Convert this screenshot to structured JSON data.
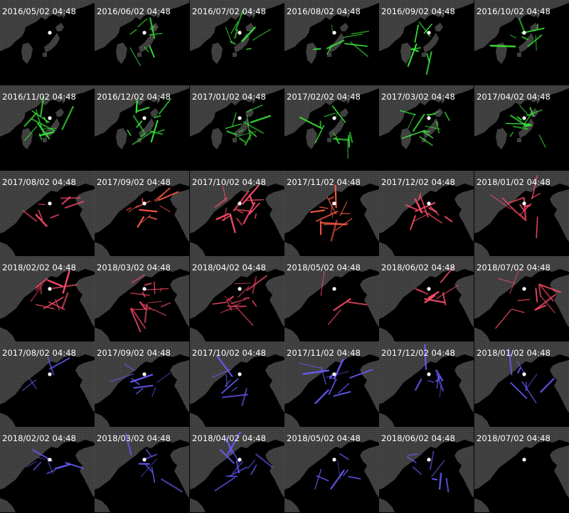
{
  "panels": [
    {
      "label": "2016/05/02 04:48",
      "map": "japan",
      "color": "#39e639",
      "density": 0
    },
    {
      "label": "2016/06/02 04:48",
      "map": "japan",
      "color": "#39e639",
      "density": 2
    },
    {
      "label": "2016/07/02 04:48",
      "map": "japan",
      "color": "#39e639",
      "density": 2
    },
    {
      "label": "2016/08/02 04:48",
      "map": "japan",
      "color": "#39e639",
      "density": 2
    },
    {
      "label": "2016/09/02 04:48",
      "map": "japan",
      "color": "#39e639",
      "density": 2
    },
    {
      "label": "2016/10/02 04:48",
      "map": "japan",
      "color": "#39e639",
      "density": 2
    },
    {
      "label": "2016/11/02 04:48",
      "map": "japan",
      "color": "#39e639",
      "density": 3
    },
    {
      "label": "2016/12/02 04:48",
      "map": "japan",
      "color": "#39e639",
      "density": 3
    },
    {
      "label": "2017/01/02 04:48",
      "map": "japan",
      "color": "#39e639",
      "density": 3
    },
    {
      "label": "2017/02/02 04:48",
      "map": "japan",
      "color": "#39e639",
      "density": 3
    },
    {
      "label": "2017/03/02 04:48",
      "map": "japan",
      "color": "#39e639",
      "density": 3
    },
    {
      "label": "2017/04/02 04:48",
      "map": "japan",
      "color": "#39e639",
      "density": 3
    },
    {
      "label": "2017/08/02 04:48",
      "map": "bay",
      "color": "#ff4d6a",
      "density": 2
    },
    {
      "label": "2017/09/02 04:48",
      "map": "bay",
      "color": "#ff5a48",
      "density": 3
    },
    {
      "label": "2017/10/02 04:48",
      "map": "bay",
      "color": "#ff4d6a",
      "density": 4
    },
    {
      "label": "2017/11/02 04:48",
      "map": "bay",
      "color": "#ff5a48",
      "density": 4
    },
    {
      "label": "2017/12/02 04:48",
      "map": "bay",
      "color": "#ff4d6a",
      "density": 3
    },
    {
      "label": "2018/01/02 04:48",
      "map": "bay",
      "color": "#ff4d6a",
      "density": 3
    },
    {
      "label": "2018/02/02 04:48",
      "map": "bay",
      "color": "#ff4d6a",
      "density": 3
    },
    {
      "label": "2018/03/02 04:48",
      "map": "bay",
      "color": "#ff4d6a",
      "density": 4
    },
    {
      "label": "2018/04/02 04:48",
      "map": "bay",
      "color": "#ff4d6a",
      "density": 4
    },
    {
      "label": "2018/05/02 04:48",
      "map": "bay",
      "color": "#ff4d6a",
      "density": 1
    },
    {
      "label": "2018/06/02 04:48",
      "map": "bay",
      "color": "#ff4d6a",
      "density": 2
    },
    {
      "label": "2018/07/02 04:48",
      "map": "bay",
      "color": "#ff4d6a",
      "density": 3
    },
    {
      "label": "2017/08/02 04:48",
      "map": "bay",
      "color": "#6a5cff",
      "density": 1
    },
    {
      "label": "2017/09/02 04:48",
      "map": "bay",
      "color": "#6a5cff",
      "density": 2
    },
    {
      "label": "2017/10/02 04:48",
      "map": "bay",
      "color": "#6a5cff",
      "density": 2
    },
    {
      "label": "2017/11/02 04:48",
      "map": "bay",
      "color": "#6a5cff",
      "density": 3
    },
    {
      "label": "2017/12/02 04:48",
      "map": "bay",
      "color": "#6a5cff",
      "density": 2
    },
    {
      "label": "2018/01/02 04:48",
      "map": "bay",
      "color": "#6a5cff",
      "density": 2
    },
    {
      "label": "2018/02/02 04:48",
      "map": "bay",
      "color": "#6a5cff",
      "density": 2
    },
    {
      "label": "2018/03/02 04:48",
      "map": "bay",
      "color": "#6a5cff",
      "density": 2
    },
    {
      "label": "2018/04/02 04:48",
      "map": "bay",
      "color": "#6a5cff",
      "density": 3
    },
    {
      "label": "2018/05/02 04:48",
      "map": "bay",
      "color": "#6a5cff",
      "density": 2
    },
    {
      "label": "2018/06/02 04:48",
      "map": "bay",
      "color": "#6a5cff",
      "density": 2
    },
    {
      "label": "2018/07/02 04:48",
      "map": "bay",
      "color": "#6a5cff",
      "density": 0
    }
  ]
}
